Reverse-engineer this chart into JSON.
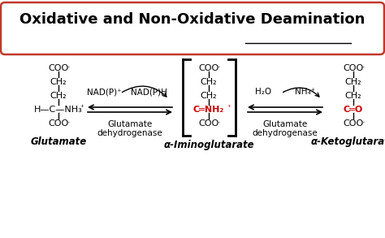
{
  "bg_color": "#ffffff",
  "box_edgecolor": "#c0392b",
  "red_color": "#cc0000",
  "title": "Oxidative and Non-Oxidative Deamination",
  "glutamate_label": "Glutamate",
  "iminoglutarate_label": "α-Iminoglutarate",
  "ketoglutarate_label": "α-Ketoglutarate",
  "nad_left": "NAD(P)⁺",
  "nad_right": "NAD(P)H",
  "h2o": "H₂O",
  "nh4": "NH₄⁺",
  "enzyme1_l1": "Glutamate",
  "enzyme1_l2": "dehydrogenase",
  "enzyme2_l1": "Glutamate",
  "enzyme2_l2": "dehydrogenase",
  "coo_minus": "COO⁻",
  "ch2": "CH₂",
  "figw": 4.74,
  "figh": 2.93,
  "dpi": 100
}
